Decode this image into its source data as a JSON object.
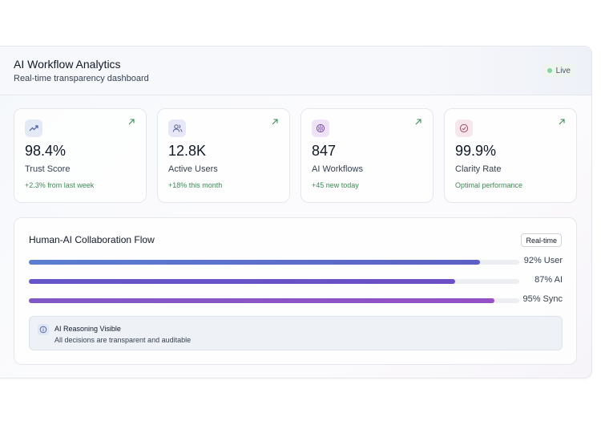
{
  "header": {
    "title": "AI Workflow Analytics",
    "subtitle": "Real-time transparency dashboard",
    "status_badge": "Live"
  },
  "cards": [
    {
      "value": "98.4%",
      "label": "Trust Score",
      "change": "+2.3% from last week",
      "icon": "trending-up-icon",
      "icon_bg": "#e3e9f5",
      "icon_color": "#4b5f9e"
    },
    {
      "value": "12.8K",
      "label": "Active Users",
      "change": "+18% this month",
      "icon": "users-icon",
      "icon_bg": "#e6e8f7",
      "icon_color": "#55608f"
    },
    {
      "value": "847",
      "label": "AI Workflows",
      "change": "+45 new today",
      "icon": "brain-icon",
      "icon_bg": "#efe4f7",
      "icon_color": "#7a4fa8"
    },
    {
      "value": "99.9%",
      "label": "Clarity Rate",
      "change": "Optimal performance",
      "icon": "check-circle-icon",
      "icon_bg": "#f7e6ec",
      "icon_color": "#a34d6b"
    }
  ],
  "collaboration": {
    "title": "Human-AI Collaboration Flow",
    "badge": "Real-time",
    "bars": [
      {
        "label": "92% User",
        "percent": 92,
        "color_from": "#5b7fd0",
        "color_to": "#5c5fc4"
      },
      {
        "label": "87% AI",
        "percent": 87,
        "color_from": "#6557c9",
        "color_to": "#6c4fc6"
      },
      {
        "label": "95% Sync",
        "percent": 95,
        "color_from": "#8059c6",
        "color_to": "#9450c4"
      }
    ],
    "reasoning": {
      "title": "AI Reasoning Visible",
      "subtitle": "All decisions are transparent and auditable",
      "icon": "info-icon"
    }
  },
  "colors": {
    "accent_green": "#3c8a56",
    "live_dot": "#86d39b"
  }
}
